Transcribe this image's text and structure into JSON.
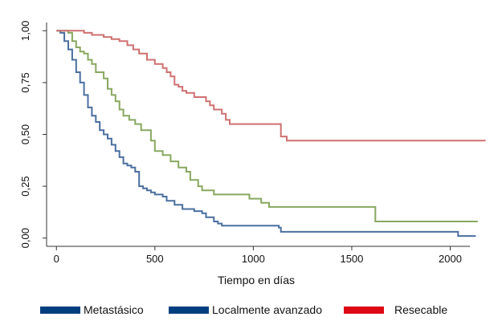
{
  "chart_data": {
    "type": "line",
    "xlabel": "Tiempo en días",
    "ylabel": "",
    "xlim": [
      -50,
      2100
    ],
    "ylim": [
      -0.04,
      1.04
    ],
    "x_ticks": [
      0,
      500,
      1000,
      1500,
      2000
    ],
    "x_tick_labels": [
      "0",
      "500",
      "1000",
      "1500",
      "2000"
    ],
    "y_ticks": [
      0,
      0.25,
      0.5,
      0.75,
      1
    ],
    "y_tick_labels": [
      "0,00",
      "0,25",
      "0,50",
      "0,75",
      "1,00"
    ],
    "legend_position": "bottom",
    "series": [
      {
        "name": "Metastásico",
        "color": "#4a6fa0",
        "legend_color": "#003f7f",
        "points": [
          [
            0,
            1
          ],
          [
            20,
            0.99
          ],
          [
            40,
            0.95
          ],
          [
            60,
            0.91
          ],
          [
            80,
            0.86
          ],
          [
            100,
            0.8
          ],
          [
            120,
            0.75
          ],
          [
            140,
            0.69
          ],
          [
            160,
            0.63
          ],
          [
            180,
            0.59
          ],
          [
            200,
            0.56
          ],
          [
            220,
            0.52
          ],
          [
            240,
            0.5
          ],
          [
            260,
            0.48
          ],
          [
            280,
            0.45
          ],
          [
            300,
            0.42
          ],
          [
            320,
            0.39
          ],
          [
            340,
            0.36
          ],
          [
            360,
            0.35
          ],
          [
            380,
            0.34
          ],
          [
            400,
            0.32
          ],
          [
            420,
            0.25
          ],
          [
            440,
            0.24
          ],
          [
            460,
            0.23
          ],
          [
            480,
            0.22
          ],
          [
            500,
            0.21
          ],
          [
            540,
            0.2
          ],
          [
            560,
            0.18
          ],
          [
            600,
            0.16
          ],
          [
            640,
            0.14
          ],
          [
            700,
            0.13
          ],
          [
            740,
            0.12
          ],
          [
            760,
            0.1
          ],
          [
            800,
            0.08
          ],
          [
            820,
            0.07
          ],
          [
            840,
            0.06
          ],
          [
            1130,
            0.05
          ],
          [
            1140,
            0.03
          ],
          [
            2030,
            0.03
          ],
          [
            2040,
            0.01
          ],
          [
            2130,
            0.01
          ]
        ]
      },
      {
        "name": "Localmente avanzado",
        "color": "#88a860",
        "legend_color": "#003f7f",
        "points": [
          [
            0,
            1
          ],
          [
            60,
            0.99
          ],
          [
            80,
            0.95
          ],
          [
            100,
            0.92
          ],
          [
            120,
            0.9
          ],
          [
            140,
            0.89
          ],
          [
            160,
            0.86
          ],
          [
            180,
            0.84
          ],
          [
            200,
            0.8
          ],
          [
            240,
            0.77
          ],
          [
            260,
            0.72
          ],
          [
            280,
            0.69
          ],
          [
            300,
            0.66
          ],
          [
            320,
            0.62
          ],
          [
            340,
            0.59
          ],
          [
            370,
            0.57
          ],
          [
            400,
            0.55
          ],
          [
            430,
            0.52
          ],
          [
            480,
            0.47
          ],
          [
            500,
            0.42
          ],
          [
            540,
            0.4
          ],
          [
            580,
            0.37
          ],
          [
            620,
            0.34
          ],
          [
            660,
            0.32
          ],
          [
            680,
            0.28
          ],
          [
            720,
            0.25
          ],
          [
            740,
            0.23
          ],
          [
            800,
            0.21
          ],
          [
            980,
            0.19
          ],
          [
            1040,
            0.17
          ],
          [
            1080,
            0.15
          ],
          [
            1620,
            0.08
          ],
          [
            2140,
            0.08
          ]
        ]
      },
      {
        "name": "Resecable",
        "color": "#d07070",
        "legend_color": "#dd0a16",
        "points": [
          [
            0,
            1
          ],
          [
            100,
            1
          ],
          [
            140,
            0.99
          ],
          [
            180,
            0.98
          ],
          [
            240,
            0.97
          ],
          [
            280,
            0.96
          ],
          [
            320,
            0.95
          ],
          [
            360,
            0.93
          ],
          [
            390,
            0.91
          ],
          [
            420,
            0.89
          ],
          [
            460,
            0.86
          ],
          [
            500,
            0.84
          ],
          [
            540,
            0.82
          ],
          [
            560,
            0.8
          ],
          [
            580,
            0.78
          ],
          [
            600,
            0.74
          ],
          [
            620,
            0.73
          ],
          [
            640,
            0.71
          ],
          [
            660,
            0.7
          ],
          [
            700,
            0.68
          ],
          [
            760,
            0.66
          ],
          [
            780,
            0.64
          ],
          [
            800,
            0.62
          ],
          [
            840,
            0.6
          ],
          [
            860,
            0.57
          ],
          [
            880,
            0.55
          ],
          [
            1140,
            0.49
          ],
          [
            1170,
            0.47
          ],
          [
            2180,
            0.47
          ]
        ]
      }
    ]
  }
}
